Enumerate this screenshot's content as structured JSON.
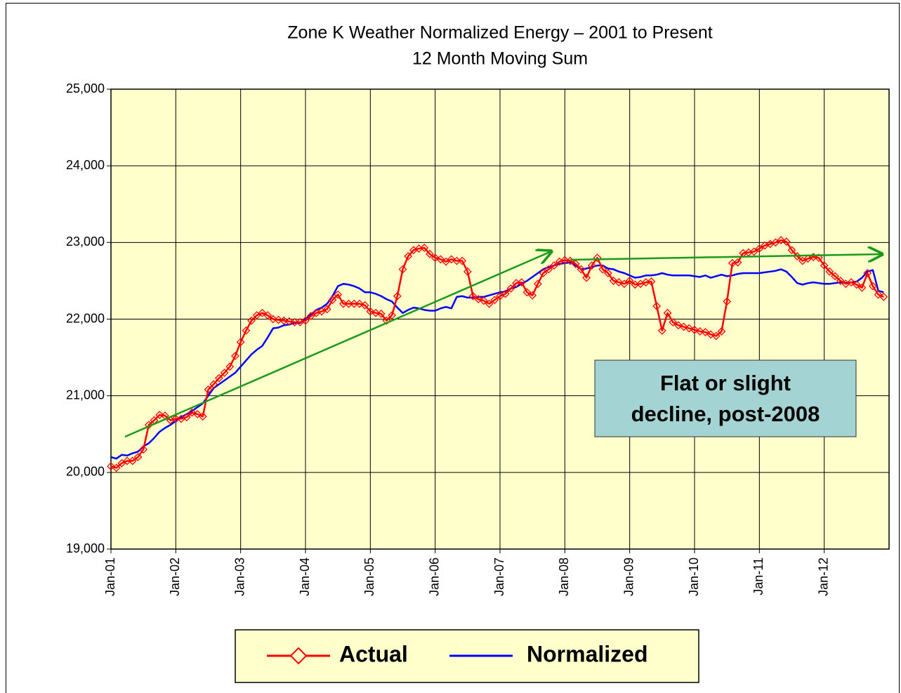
{
  "chart_data": {
    "type": "line",
    "title": "Zone K Weather Normalized Energy – 2001 to Present",
    "subtitle": "12 Month Moving Sum",
    "annotation": [
      "Flat or slight",
      "decline, post-2008"
    ],
    "legend": "bottom",
    "grid": true,
    "background": "#ffffcc",
    "categories": [
      "Jan-01",
      null,
      null,
      null,
      null,
      null,
      null,
      null,
      null,
      null,
      null,
      null,
      "Jan-02",
      null,
      null,
      null,
      null,
      null,
      null,
      null,
      null,
      null,
      null,
      null,
      "Jan-03",
      null,
      null,
      null,
      null,
      null,
      null,
      null,
      null,
      null,
      null,
      null,
      "Jan-04",
      null,
      null,
      null,
      null,
      null,
      null,
      null,
      null,
      null,
      null,
      null,
      "Jan-05",
      null,
      null,
      null,
      null,
      null,
      null,
      null,
      null,
      null,
      null,
      null,
      "Jan-06",
      null,
      null,
      null,
      null,
      null,
      null,
      null,
      null,
      null,
      null,
      null,
      "Jan-07",
      null,
      null,
      null,
      null,
      null,
      null,
      null,
      null,
      null,
      null,
      null,
      "Jan-08",
      null,
      null,
      null,
      null,
      null,
      null,
      null,
      null,
      null,
      null,
      null,
      "Jan-09",
      null,
      null,
      null,
      null,
      null,
      null,
      null,
      null,
      null,
      null,
      null,
      "Jan-10",
      null,
      null,
      null,
      null,
      null,
      null,
      null,
      null,
      null,
      null,
      null,
      "Jan-11",
      null,
      null,
      null,
      null,
      null,
      null,
      null,
      null,
      null,
      null,
      null,
      "Jan-12",
      null,
      null,
      null,
      null,
      null,
      null,
      null,
      null,
      null,
      null,
      null
    ],
    "ylim": [
      19000,
      25000
    ],
    "yticks": [
      {
        "value": 19000,
        "label": "19,000"
      },
      {
        "value": 20000,
        "label": "20,000"
      },
      {
        "value": 21000,
        "label": "21,000"
      },
      {
        "value": 22000,
        "label": "22,000"
      },
      {
        "value": 23000,
        "label": "23,000"
      },
      {
        "value": 24000,
        "label": "24,000"
      },
      {
        "value": 25000,
        "label": "25,000"
      }
    ],
    "series": [
      {
        "name": "Actual",
        "color": "#ff0000",
        "marker": "diamond",
        "values": [
          20080,
          20060,
          20120,
          20150,
          20150,
          20200,
          20300,
          20620,
          20680,
          20750,
          20740,
          20680,
          20700,
          20700,
          20720,
          20780,
          20760,
          20730,
          21080,
          21150,
          21230,
          21300,
          21380,
          21520,
          21700,
          21850,
          21980,
          22050,
          22080,
          22050,
          22000,
          21990,
          21980,
          21970,
          21960,
          21960,
          21980,
          22040,
          22080,
          22100,
          22130,
          22250,
          22320,
          22200,
          22200,
          22200,
          22200,
          22180,
          22100,
          22080,
          22070,
          21980,
          22050,
          22300,
          22650,
          22820,
          22900,
          22920,
          22930,
          22850,
          22800,
          22780,
          22750,
          22780,
          22760,
          22760,
          22620,
          22300,
          22260,
          22240,
          22200,
          22250,
          22300,
          22330,
          22400,
          22470,
          22480,
          22350,
          22310,
          22460,
          22600,
          22650,
          22700,
          22750,
          22770,
          22760,
          22720,
          22650,
          22540,
          22700,
          22800,
          22650,
          22600,
          22500,
          22480,
          22460,
          22500,
          22450,
          22460,
          22480,
          22490,
          22170,
          21850,
          22080,
          21960,
          21920,
          21900,
          21880,
          21860,
          21840,
          21830,
          21800,
          21780,
          21840,
          22230,
          22730,
          22740,
          22860,
          22870,
          22880,
          22920,
          22960,
          22980,
          23000,
          23030,
          23010,
          22900,
          22820,
          22760,
          22790,
          22810,
          22800,
          22700,
          22620,
          22560,
          22500,
          22460,
          22480,
          22450,
          22410,
          22600,
          22430,
          22320,
          22290
        ]
      },
      {
        "name": "Normalized",
        "color": "#0000ff",
        "values": [
          20200,
          20180,
          20230,
          20220,
          20250,
          20270,
          20340,
          20380,
          20450,
          20530,
          20580,
          20620,
          20670,
          20720,
          20760,
          20800,
          20850,
          20900,
          21000,
          21100,
          21150,
          21200,
          21250,
          21300,
          21380,
          21460,
          21540,
          21600,
          21650,
          21760,
          21880,
          21890,
          21920,
          21930,
          21950,
          21950,
          22000,
          22060,
          22120,
          22150,
          22200,
          22300,
          22430,
          22460,
          22450,
          22430,
          22400,
          22350,
          22350,
          22330,
          22300,
          22260,
          22230,
          22150,
          22080,
          22120,
          22150,
          22140,
          22120,
          22110,
          22110,
          22140,
          22160,
          22140,
          22290,
          22300,
          22280,
          22280,
          22290,
          22290,
          22310,
          22330,
          22350,
          22360,
          22400,
          22420,
          22460,
          22500,
          22550,
          22600,
          22650,
          22680,
          22700,
          22720,
          22730,
          22740,
          22700,
          22650,
          22660,
          22680,
          22700,
          22700,
          22660,
          22650,
          22620,
          22600,
          22570,
          22540,
          22550,
          22570,
          22570,
          22580,
          22600,
          22580,
          22570,
          22570,
          22570,
          22570,
          22560,
          22550,
          22570,
          22540,
          22560,
          22580,
          22560,
          22570,
          22590,
          22600,
          22600,
          22600,
          22600,
          22610,
          22620,
          22630,
          22650,
          22620,
          22550,
          22470,
          22450,
          22470,
          22480,
          22470,
          22460,
          22460,
          22470,
          22480,
          22470,
          22480,
          22490,
          22540,
          22620,
          22640,
          22370,
          22350
        ]
      }
    ]
  }
}
